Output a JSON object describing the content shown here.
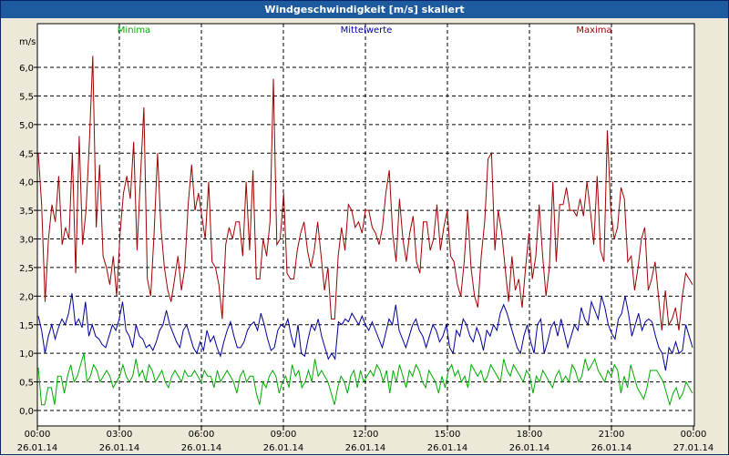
{
  "window": {
    "title": "Windgeschwindigkeit [m/s] skaliert"
  },
  "colors": {
    "minima": "#00aa00",
    "mittel": "#00009a",
    "maxima": "#a00000",
    "titlebar": "#1e5b9e"
  },
  "chart_data": {
    "type": "line",
    "title": "Windgeschwindigkeit [m/s] skaliert",
    "ylabel": "m/s",
    "ylim": [
      0,
      6.2
    ],
    "yticks": [
      "0,0",
      "0,5",
      "1,0",
      "1,5",
      "2,0",
      "2,5",
      "3,0",
      "3,5",
      "4,0",
      "4,5",
      "5,0",
      "5,5",
      "6,0"
    ],
    "xticks": [
      {
        "time": "00:00",
        "date": "26.01.14"
      },
      {
        "time": "03:00",
        "date": "26.01.14"
      },
      {
        "time": "06:00",
        "date": "26.01.14"
      },
      {
        "time": "09:00",
        "date": "26.01.14"
      },
      {
        "time": "12:00",
        "date": "26.01.14"
      },
      {
        "time": "15:00",
        "date": "26.01.14"
      },
      {
        "time": "18:00",
        "date": "26.01.14"
      },
      {
        "time": "21:00",
        "date": "26.01.14"
      },
      {
        "time": "00:00",
        "date": "27.01.14"
      }
    ],
    "xlim_hours": [
      0,
      24
    ],
    "grid": true,
    "series": [
      {
        "name": "Minima",
        "color": "#00aa00",
        "values": [
          0.75,
          0.1,
          0.1,
          0.4,
          0.4,
          0.1,
          0.6,
          0.6,
          0.3,
          0.6,
          0.8,
          0.5,
          0.6,
          0.8,
          1.0,
          0.5,
          0.6,
          0.8,
          0.7,
          0.5,
          0.6,
          0.7,
          0.6,
          0.4,
          0.5,
          0.6,
          0.8,
          0.6,
          0.5,
          0.6,
          0.9,
          0.6,
          0.7,
          0.5,
          0.8,
          0.7,
          0.5,
          0.6,
          0.7,
          0.5,
          0.4,
          0.6,
          0.7,
          0.6,
          0.5,
          0.7,
          0.6,
          0.6,
          0.7,
          0.6,
          0.5,
          0.7,
          0.6,
          0.6,
          0.4,
          0.7,
          0.5,
          0.6,
          0.7,
          0.6,
          0.5,
          0.3,
          0.6,
          0.7,
          0.5,
          0.6,
          0.6,
          0.3,
          0.1,
          0.5,
          0.4,
          0.6,
          0.7,
          0.6,
          0.3,
          0.5,
          0.6,
          0.4,
          0.8,
          0.6,
          0.7,
          0.4,
          0.5,
          0.7,
          0.5,
          0.9,
          0.6,
          0.7,
          0.6,
          0.5,
          0.3,
          0.1,
          0.4,
          0.6,
          0.5,
          0.3,
          0.6,
          0.7,
          0.4,
          0.7,
          0.5,
          0.6,
          0.7,
          0.6,
          0.8,
          0.7,
          0.5,
          0.7,
          0.3,
          0.7,
          0.5,
          0.8,
          0.6,
          0.4,
          0.7,
          0.6,
          0.8,
          0.7,
          0.5,
          0.4,
          0.7,
          0.6,
          0.5,
          0.3,
          0.6,
          0.4,
          0.7,
          0.8,
          0.6,
          0.7,
          0.5,
          0.6,
          0.4,
          0.8,
          0.7,
          0.6,
          0.7,
          0.5,
          0.6,
          0.8,
          0.7,
          0.6,
          0.5,
          0.9,
          0.7,
          0.6,
          0.8,
          0.7,
          0.6,
          0.5,
          0.7,
          0.6,
          0.3,
          0.6,
          0.5,
          0.7,
          0.6,
          0.5,
          0.4,
          0.6,
          0.7,
          0.5,
          0.6,
          0.5,
          0.8,
          0.7,
          0.5,
          0.6,
          0.9,
          0.7,
          0.8,
          0.9,
          0.7,
          0.6,
          0.5,
          0.7,
          0.6,
          0.8,
          0.7,
          0.3,
          0.6,
          0.4,
          0.8,
          0.6,
          0.4,
          0.3,
          0.2,
          0.4,
          0.7,
          0.7,
          0.7,
          0.6,
          0.5,
          0.3,
          0.1,
          0.3,
          0.4,
          0.2,
          0.3,
          0.5,
          0.4,
          0.3
        ]
      },
      {
        "name": "Mittelwerte",
        "color": "#00009a",
        "values": [
          1.65,
          1.4,
          1.0,
          1.3,
          1.5,
          1.25,
          1.45,
          1.6,
          1.5,
          1.7,
          2.05,
          1.5,
          1.6,
          1.45,
          1.9,
          1.3,
          1.5,
          1.3,
          1.25,
          1.15,
          1.1,
          1.3,
          1.5,
          1.4,
          1.6,
          1.9,
          1.4,
          1.3,
          1.1,
          1.5,
          1.3,
          1.25,
          1.1,
          1.15,
          1.05,
          1.2,
          1.4,
          1.5,
          1.75,
          1.5,
          1.35,
          1.2,
          1.1,
          1.4,
          1.5,
          1.3,
          1.1,
          1.0,
          1.2,
          1.05,
          1.4,
          1.2,
          1.3,
          1.1,
          0.95,
          1.2,
          1.4,
          1.55,
          1.3,
          1.1,
          1.1,
          1.2,
          1.4,
          1.5,
          1.55,
          1.4,
          1.7,
          1.5,
          1.25,
          1.05,
          1.1,
          1.4,
          1.5,
          1.45,
          1.6,
          1.3,
          1.1,
          1.5,
          1.0,
          0.95,
          1.25,
          1.5,
          1.4,
          1.6,
          1.3,
          1.1,
          0.9,
          1.0,
          0.9,
          1.55,
          1.5,
          1.6,
          1.55,
          1.7,
          1.6,
          1.5,
          1.65,
          1.5,
          1.4,
          1.55,
          1.4,
          1.25,
          1.1,
          1.35,
          1.6,
          1.5,
          1.85,
          1.4,
          1.25,
          1.1,
          1.3,
          1.5,
          1.6,
          1.4,
          1.3,
          1.1,
          1.3,
          1.5,
          1.4,
          1.2,
          1.3,
          1.5,
          1.1,
          1.0,
          1.4,
          1.3,
          1.6,
          1.5,
          1.3,
          1.2,
          1.45,
          1.3,
          1.05,
          1.4,
          1.3,
          1.5,
          1.4,
          1.7,
          1.85,
          1.7,
          1.5,
          1.3,
          1.1,
          1.0,
          1.3,
          1.5,
          1.2,
          1.0,
          1.5,
          1.6,
          1.0,
          1.2,
          1.45,
          1.55,
          1.3,
          1.6,
          1.35,
          1.1,
          1.3,
          1.5,
          1.4,
          1.8,
          1.6,
          1.5,
          1.9,
          1.75,
          1.6,
          2.0,
          1.8,
          1.5,
          1.35,
          1.25,
          1.6,
          1.7,
          2.0,
          1.7,
          1.3,
          1.5,
          1.7,
          1.4,
          1.55,
          1.6,
          1.55,
          1.3,
          1.1,
          1.0,
          0.7,
          1.1,
          1.0,
          1.2,
          1.0,
          1.05,
          1.5,
          1.3,
          1.1
        ]
      },
      {
        "name": "Maxima",
        "color": "#a00000",
        "values": [
          4.5,
          3.6,
          1.9,
          3.0,
          3.6,
          3.3,
          4.1,
          2.9,
          3.2,
          3.0,
          4.5,
          2.4,
          4.8,
          2.9,
          3.5,
          4.7,
          6.2,
          3.2,
          4.3,
          2.7,
          2.5,
          2.2,
          2.7,
          2.0,
          3.1,
          3.8,
          4.1,
          3.7,
          4.7,
          2.8,
          4.1,
          5.3,
          2.3,
          2.0,
          3.1,
          4.5,
          3.2,
          2.5,
          2.1,
          1.9,
          2.3,
          2.7,
          2.1,
          2.5,
          3.6,
          4.3,
          3.5,
          3.8,
          3.4,
          3.0,
          4.0,
          2.6,
          2.5,
          2.2,
          1.6,
          2.9,
          3.2,
          3.0,
          3.3,
          3.3,
          2.7,
          4.0,
          2.8,
          4.2,
          2.3,
          2.3,
          3.0,
          2.7,
          3.3,
          5.8,
          2.9,
          3.0,
          3.8,
          2.4,
          2.3,
          2.3,
          2.8,
          3.1,
          3.3,
          2.8,
          2.5,
          2.8,
          3.3,
          2.7,
          2.1,
          2.5,
          1.6,
          1.6,
          2.7,
          3.2,
          2.8,
          3.6,
          3.5,
          3.2,
          3.3,
          3.1,
          3.5,
          3.5,
          3.2,
          3.1,
          2.9,
          3.2,
          3.8,
          4.2,
          3.1,
          2.6,
          3.7,
          3.0,
          2.6,
          3.1,
          3.4,
          2.6,
          2.4,
          3.3,
          3.3,
          2.8,
          3.0,
          3.6,
          2.8,
          3.2,
          3.5,
          2.7,
          2.6,
          2.2,
          2.0,
          2.6,
          3.5,
          2.5,
          2.0,
          1.8,
          2.7,
          3.3,
          4.4,
          4.5,
          2.8,
          3.5,
          3.1,
          2.5,
          1.9,
          2.7,
          2.1,
          2.3,
          1.8,
          2.5,
          3.1,
          2.3,
          2.7,
          3.6,
          2.7,
          2.0,
          2.5,
          4.0,
          2.6,
          3.6,
          3.6,
          3.9,
          3.5,
          3.5,
          3.4,
          3.7,
          3.4,
          4.0,
          3.5,
          2.9,
          4.1,
          2.8,
          2.6,
          4.9,
          3.5,
          3.0,
          3.2,
          3.9,
          3.7,
          2.6,
          2.7,
          2.1,
          2.5,
          3.0,
          3.2,
          2.1,
          2.3,
          2.6,
          2.0,
          1.4,
          2.1,
          1.5,
          1.6,
          1.8,
          1.4,
          2.0,
          2.4,
          2.3,
          2.2
        ]
      }
    ]
  }
}
